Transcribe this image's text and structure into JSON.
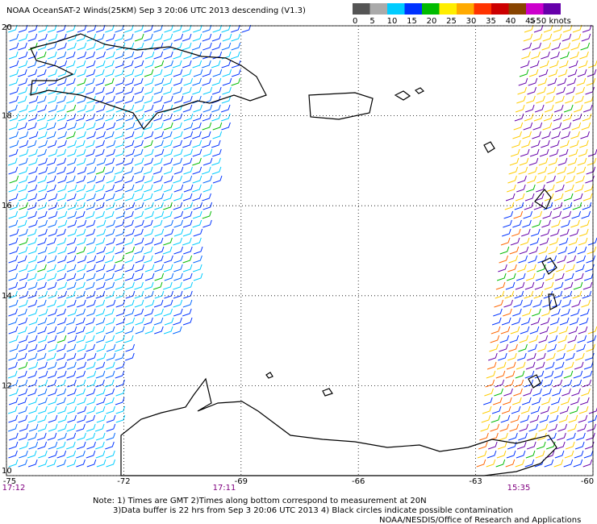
{
  "title": "NOAA OceanSAT-2 Winds(25KM) Sep  3 20:06 UTC 2013 descending (V1.3)",
  "colorbar": {
    "labels": [
      "0",
      "5",
      "10",
      "15",
      "20",
      "25",
      "30",
      "35",
      "40",
      "45",
      ">50 knots"
    ],
    "colors": [
      "#555555",
      "#aaaaaa",
      "#00ccff",
      "#0033ff",
      "#00bb00",
      "#ffee00",
      "#ffaa00",
      "#ff3300",
      "#cc0000",
      "#884400",
      "#cc00cc",
      "#6600aa"
    ]
  },
  "lon_ticks": [
    -75,
    -72,
    -69,
    -66,
    -63,
    -60
  ],
  "lat_ticks": [
    20,
    18,
    16,
    14,
    12,
    10
  ],
  "times": [
    "17:12",
    "17:11",
    "15:35"
  ],
  "notes": [
    "Note: 1) Times are GMT 2)Times along bottom correspond to measurement at 20N",
    "3)Data buffer is 22 hrs from Sep  3 20:06 UTC 2013 4) Black circles indicate possible contamination",
    "NOAA/NESDIS/Office of Research and Applications"
  ]
}
